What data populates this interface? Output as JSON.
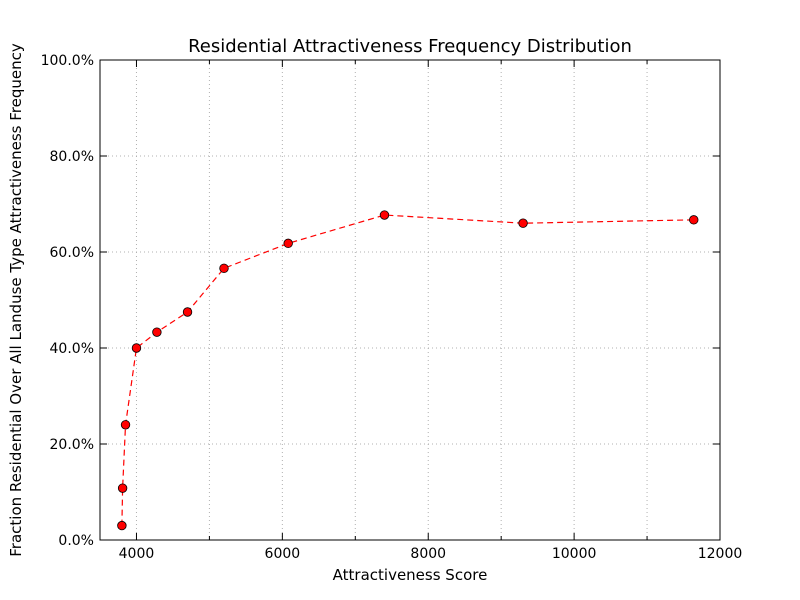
{
  "chart_data": {
    "type": "line",
    "title": "Residential Attractiveness Frequency Distribution",
    "xlabel": "Attractiveness Score",
    "ylabel": "Fraction Residential Over All Landuse Type Attractiveness Frequency",
    "xlim": [
      3500,
      12000
    ],
    "ylim": [
      0,
      100
    ],
    "x_ticks": [
      4000,
      6000,
      8000,
      10000,
      12000
    ],
    "x_tick_labels": [
      "4000",
      "6000",
      "8000",
      "10000",
      "12000"
    ],
    "y_ticks": [
      0,
      20,
      40,
      60,
      80,
      100
    ],
    "y_tick_labels": [
      "0.0%",
      "20.0%",
      "40.0%",
      "60.0%",
      "80.0%",
      "100.0%"
    ],
    "x_minor_ticks": [
      5000,
      7000,
      9000,
      11000
    ],
    "grid": true,
    "series": [
      {
        "x": [
          3800,
          3810,
          3850,
          4000,
          4280,
          4700,
          5200,
          6080,
          7400,
          9300,
          11640
        ],
        "y": [
          3.0,
          10.8,
          24.0,
          40.0,
          43.3,
          47.5,
          56.6,
          61.8,
          67.7,
          66.0,
          66.7
        ],
        "line_style": "dashed",
        "line_color": "#ff0000",
        "marker": "circle",
        "marker_color": "#ff0000"
      }
    ]
  }
}
